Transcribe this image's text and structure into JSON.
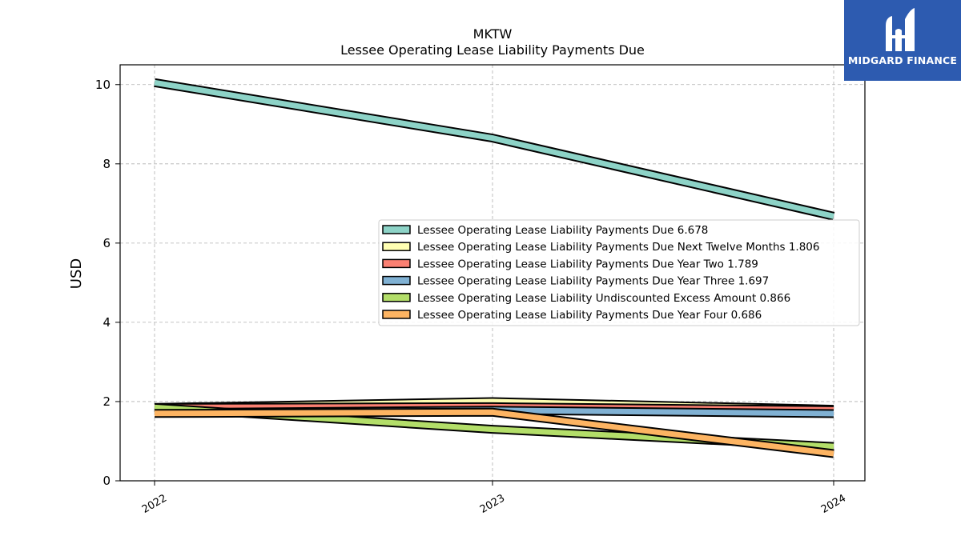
{
  "logo": {
    "text": "MIDGARD FINANCE",
    "color": "#2d5bb0"
  },
  "chart_data": {
    "type": "line",
    "title": "MKTW",
    "subtitle": "Lessee Operating Lease Liability Payments Due",
    "ylabel": "USD",
    "xlabel": "",
    "x": [
      "2022",
      "2023",
      "2024"
    ],
    "ylim": [
      0,
      10.5
    ],
    "yticks": [
      0,
      2,
      4,
      6,
      8,
      10
    ],
    "grid": true,
    "legend_position": "center-right",
    "series": [
      {
        "name": "Lessee Operating Lease Liability Payments Due",
        "legend_value": "6.678",
        "color": "#8dd3c7",
        "values": [
          10.05,
          8.65,
          6.678
        ]
      },
      {
        "name": "Lessee Operating Lease Liability Payments Due Next Twelve Months",
        "legend_value": "1.806",
        "color": "#ffffb3",
        "values": [
          1.85,
          2.0,
          1.806
        ]
      },
      {
        "name": "Lessee Operating Lease Liability Payments Due Year Two",
        "legend_value": "1.789",
        "color": "#fb8072",
        "values": [
          1.85,
          1.87,
          1.789
        ]
      },
      {
        "name": "Lessee Operating Lease Liability Payments Due Year Three",
        "legend_value": "1.697",
        "color": "#80b1d3",
        "values": [
          1.72,
          1.78,
          1.697
        ]
      },
      {
        "name": "Lessee Operating Lease Liability Undiscounted Excess Amount",
        "legend_value": "0.866",
        "color": "#b3de69",
        "values": [
          1.85,
          1.3,
          0.866
        ]
      },
      {
        "name": "Lessee Operating Lease Liability Payments Due Year Four",
        "legend_value": "0.686",
        "color": "#fdb462",
        "values": [
          1.7,
          1.73,
          0.686
        ]
      }
    ]
  }
}
